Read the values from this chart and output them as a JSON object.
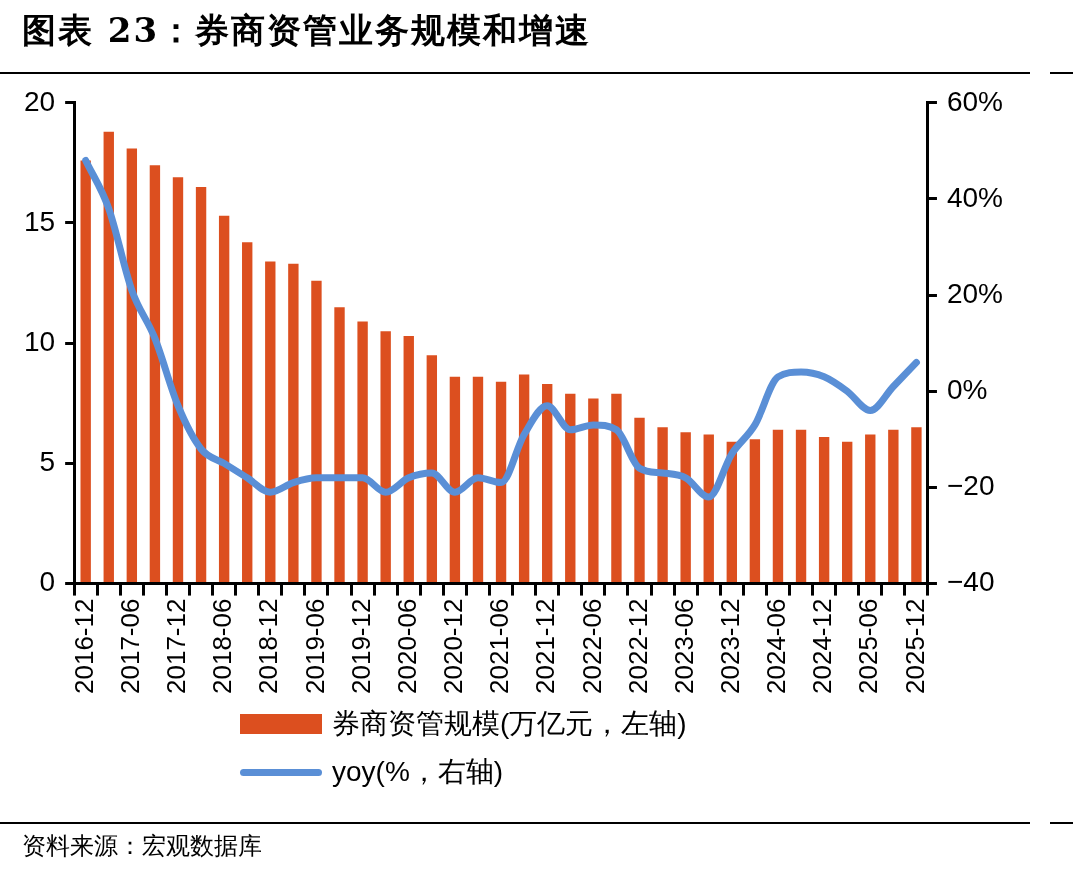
{
  "chart_data": {
    "type": "bar",
    "title": "图表 23：券商资管业务规模和增速",
    "categories": [
      "2016-12",
      null,
      "2017-06",
      null,
      "2017-12",
      null,
      "2018-06",
      null,
      "2018-12",
      null,
      "2019-06",
      null,
      "2019-12",
      null,
      "2020-06",
      null,
      "2020-12",
      null,
      "2021-06",
      null,
      "2021-12",
      null,
      "2022-06",
      null,
      "2022-12",
      null,
      "2023-06",
      null,
      "2023-12",
      null,
      "2024-06",
      null,
      "2024-12",
      null,
      "2025-06",
      null,
      "2025-12"
    ],
    "series": [
      {
        "name": "券商资管规模(万亿元，左轴)",
        "color": "#dc4f1f",
        "values": [
          17.6,
          18.8,
          18.1,
          17.4,
          16.9,
          16.5,
          15.3,
          14.2,
          13.4,
          13.3,
          12.6,
          11.5,
          10.9,
          10.5,
          10.3,
          9.5,
          8.6,
          8.6,
          8.4,
          8.7,
          8.3,
          7.9,
          7.7,
          7.9,
          6.9,
          6.5,
          6.3,
          6.2,
          5.9,
          6.0,
          6.4,
          6.4,
          6.1,
          5.9,
          6.2,
          6.4,
          6.5
        ]
      },
      {
        "name": "yoy(%，右轴)",
        "type": "line",
        "axis": "y2",
        "color": "#5a8fd6",
        "values": [
          48,
          38,
          21,
          11,
          -3,
          -12,
          -15,
          -18,
          -21,
          -19,
          -18,
          -18,
          -18,
          -21,
          -18,
          -17,
          -21,
          -18,
          -19,
          -9,
          -3,
          -8,
          -7,
          -8,
          -16,
          -17,
          -18,
          -22,
          -13,
          -7,
          3,
          4,
          3,
          0,
          -4,
          1,
          6
        ]
      }
    ],
    "ylim": [
      0,
      20
    ],
    "yticks": [
      0,
      5,
      10,
      15,
      20
    ],
    "y2lim": [
      -40,
      60
    ],
    "y2ticks": [
      {
        "value": -40,
        "label": "−40"
      },
      {
        "value": -20,
        "label": "−20"
      },
      {
        "value": 0,
        "label": "0%"
      },
      {
        "value": 20,
        "label": "20%"
      },
      {
        "value": 40,
        "label": "40%"
      },
      {
        "value": 60,
        "label": "60%"
      }
    ],
    "legend": "bottom",
    "annotations": [
      "资料来源：宏观数据库"
    ]
  }
}
